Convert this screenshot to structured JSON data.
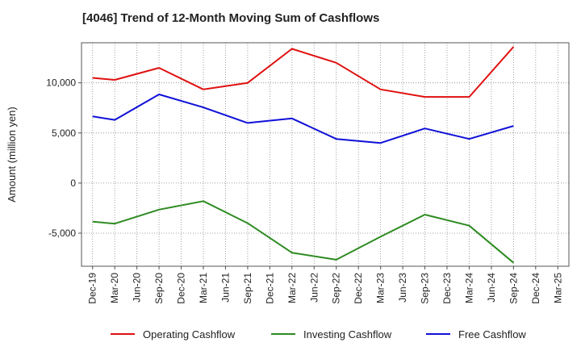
{
  "chart_data": {
    "type": "line",
    "title": "[4046]  Trend of 12-Month Moving Sum of Cashflows",
    "xlabel": "",
    "ylabel": "Amount (million yen)",
    "x": [
      "Dec-19",
      "Mar-20",
      "Jun-20",
      "Sep-20",
      "Dec-20",
      "Mar-21",
      "Jun-21",
      "Sep-21",
      "Dec-21",
      "Mar-22",
      "Jun-22",
      "Sep-22",
      "Dec-22",
      "Mar-23",
      "Jun-23",
      "Sep-23",
      "Dec-23",
      "Mar-24",
      "Jun-24",
      "Sep-24",
      "Dec-24",
      "Mar-25"
    ],
    "ylim": [
      -8300,
      14000
    ],
    "yticks": [
      -5000,
      0,
      5000,
      10000
    ],
    "ytick_labels": [
      "-5,000",
      "0",
      "5,000",
      "10,000"
    ],
    "grid": "dotted",
    "legend_position": "bottom",
    "series": [
      {
        "name": "Operating Cashflow",
        "color": "#e01010",
        "values": [
          10500,
          10300,
          null,
          11500,
          null,
          9350,
          null,
          10000,
          null,
          13400,
          null,
          12000,
          null,
          9350,
          null,
          8600,
          null,
          8600,
          null,
          13600,
          null,
          null
        ]
      },
      {
        "name": "Investing Cashflow",
        "color": "#2e8b22",
        "values": [
          -3850,
          -4050,
          null,
          -2650,
          null,
          -1800,
          null,
          -4000,
          null,
          -6950,
          null,
          -7650,
          null,
          -5350,
          null,
          -3150,
          null,
          -4250,
          null,
          -7950,
          null,
          null
        ]
      },
      {
        "name": "Free Cashflow",
        "color": "#1010d8",
        "values": [
          6650,
          6300,
          null,
          8850,
          null,
          7550,
          null,
          6000,
          null,
          6450,
          null,
          4400,
          null,
          4000,
          null,
          5450,
          null,
          4400,
          null,
          5700,
          null,
          null
        ]
      }
    ]
  }
}
